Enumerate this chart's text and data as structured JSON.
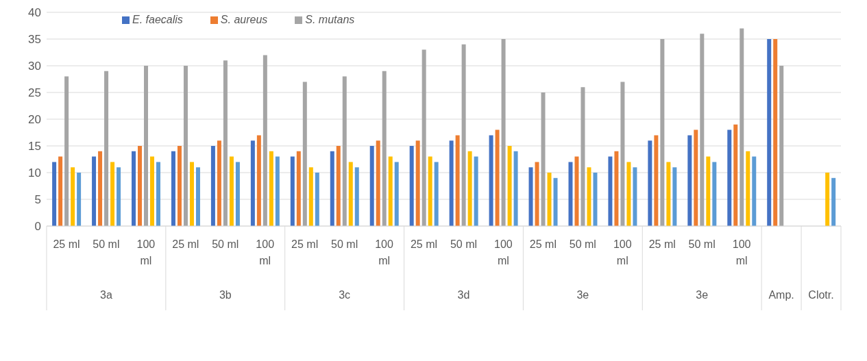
{
  "chart_data": {
    "type": "bar",
    "categories": [
      "25 ml",
      "50 ml",
      "100 ml",
      "25 ml",
      "50 ml",
      "100 ml",
      "25 ml",
      "50 ml",
      "100 ml",
      "25 ml",
      "50 ml",
      "100 ml",
      "25 ml",
      "50 ml",
      "100 ml",
      "25 ml",
      "50 ml",
      "100 ml",
      null,
      null
    ],
    "annotations": [
      "3a",
      "3b",
      "3c",
      "3d",
      "3e",
      "3e",
      "Amp.",
      "Clotr."
    ],
    "series": [
      {
        "name": "E. faecalis",
        "color": "#4472c4",
        "values": [
          12,
          13,
          14,
          14,
          15,
          16,
          13,
          14,
          15,
          15,
          16,
          17,
          11,
          12,
          13,
          16,
          17,
          18,
          35,
          null
        ]
      },
      {
        "name": "S. aureus",
        "color": "#ed7d31",
        "values": [
          13,
          14,
          15,
          15,
          16,
          17,
          14,
          15,
          16,
          16,
          17,
          18,
          12,
          13,
          14,
          17,
          18,
          19,
          35,
          null
        ]
      },
      {
        "name": "S. mutans",
        "color": "#a5a5a5",
        "values": [
          28,
          29,
          30,
          30,
          31,
          32,
          27,
          28,
          29,
          33,
          34,
          35,
          25,
          26,
          27,
          35,
          36,
          37,
          30,
          null
        ]
      },
      {
        "color": "#ffc000",
        "values": [
          11,
          12,
          13,
          12,
          13,
          14,
          11,
          12,
          13,
          13,
          14,
          15,
          10,
          11,
          12,
          12,
          13,
          14,
          null,
          10
        ]
      },
      {
        "color": "#5b9bd5",
        "values": [
          10,
          11,
          12,
          11,
          12,
          13,
          10,
          11,
          12,
          12,
          13,
          14,
          9,
          10,
          11,
          11,
          12,
          13,
          null,
          9
        ]
      }
    ],
    "ylim": [
      0,
      40
    ],
    "yticks": [
      0,
      5,
      10,
      15,
      20,
      25,
      30,
      35,
      40
    ],
    "grid": "y",
    "legend": "top"
  }
}
